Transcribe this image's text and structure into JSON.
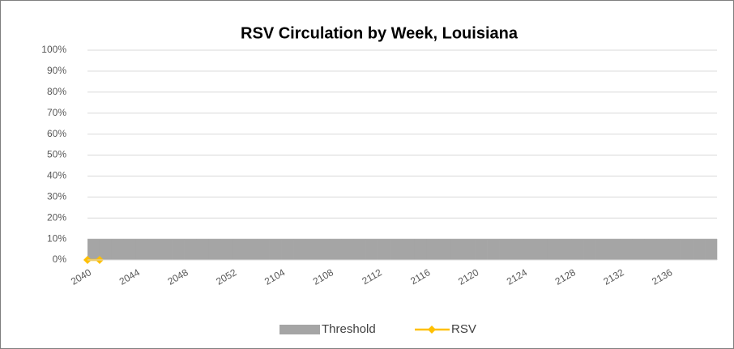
{
  "chart_data": {
    "type": "bar",
    "title": "RSV Circulation by Week, Louisiana",
    "categories": [
      "2040",
      null,
      null,
      null,
      "2044",
      null,
      null,
      null,
      "2048",
      null,
      null,
      null,
      "2052",
      null,
      null,
      null,
      "2104",
      null,
      null,
      null,
      "2108",
      null,
      null,
      null,
      "2112",
      null,
      null,
      null,
      "2116",
      null,
      null,
      null,
      "2120",
      null,
      null,
      null,
      "2124",
      null,
      null,
      null,
      "2128",
      null,
      null,
      null,
      "2132",
      null,
      null,
      null,
      "2136",
      null,
      null,
      null
    ],
    "series": [
      {
        "name": "Threshold",
        "type": "area",
        "color": "#a5a5a5",
        "values": [
          10,
          10,
          10,
          10,
          10,
          10,
          10,
          10,
          10,
          10,
          10,
          10,
          10,
          10,
          10,
          10,
          10,
          10,
          10,
          10,
          10,
          10,
          10,
          10,
          10,
          10,
          10,
          10,
          10,
          10,
          10,
          10,
          10,
          10,
          10,
          10,
          10,
          10,
          10,
          10,
          10,
          10,
          10,
          10,
          10,
          10,
          10,
          10,
          10,
          10,
          10,
          10
        ]
      },
      {
        "name": "RSV",
        "type": "line",
        "color": "#ffc000",
        "values": [
          0,
          0,
          null,
          null,
          null,
          null,
          null,
          null,
          null,
          null,
          null,
          null,
          null,
          null,
          null,
          null,
          null,
          null,
          null,
          null,
          null,
          null,
          null,
          null,
          null,
          null,
          null,
          null,
          null,
          null,
          null,
          null,
          null,
          null,
          null,
          null,
          null,
          null,
          null,
          null,
          null,
          null,
          null,
          null,
          null,
          null,
          null,
          null,
          null,
          null,
          null,
          null
        ]
      }
    ],
    "ylim": [
      0,
      100
    ],
    "yticks": [
      {
        "value": 0,
        "label": "0%"
      },
      {
        "value": 10,
        "label": "10%"
      },
      {
        "value": 20,
        "label": "20%"
      },
      {
        "value": 30,
        "label": "30%"
      },
      {
        "value": 40,
        "label": "40%"
      },
      {
        "value": 50,
        "label": "50%"
      },
      {
        "value": 60,
        "label": "60%"
      },
      {
        "value": 70,
        "label": "70%"
      },
      {
        "value": 80,
        "label": "80%"
      },
      {
        "value": 90,
        "label": "90%"
      },
      {
        "value": 100,
        "label": "100%"
      }
    ],
    "grid": true,
    "legend": "bottom"
  }
}
